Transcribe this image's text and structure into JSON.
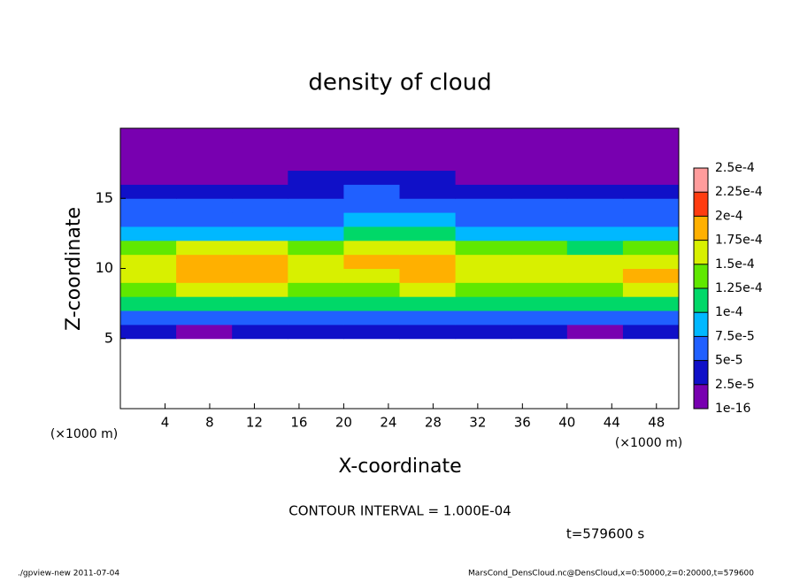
{
  "chart_data": {
    "type": "heatmap",
    "title": "density of cloud",
    "x_label": "X-coordinate",
    "y_label": "Z-coordinate",
    "x_unit": "(×1000 m)",
    "y_unit": "(×1000 m)",
    "annotation": "CONTOUR INTERVAL = 1.000E-04",
    "time_label": "t=579600 s",
    "footer_left": "./gpview-new  2011-07-04",
    "footer_right": "MarsCond_DensCloud.nc@DensCloud,x=0:50000,z=0:20000,t=579600",
    "xlim": [
      0,
      50
    ],
    "ylim": [
      0,
      20
    ],
    "xticks": [
      4,
      8,
      12,
      16,
      20,
      24,
      28,
      32,
      36,
      40,
      44,
      48
    ],
    "yticks": [
      5,
      10,
      15
    ],
    "x": [
      2.5,
      7.5,
      12.5,
      17.5,
      22.5,
      27.5,
      32.5,
      37.5,
      42.5,
      47.5
    ],
    "y": [
      0.5,
      1.5,
      2.5,
      3.5,
      4.5,
      5.5,
      6.5,
      7.5,
      8.5,
      9.5,
      10.5,
      11.5,
      12.5,
      13.5,
      14.5,
      15.5,
      16.5,
      17.5,
      18.5,
      19.5
    ],
    "values": [
      [
        null,
        null,
        null,
        null,
        null,
        null,
        null,
        null,
        null,
        null
      ],
      [
        null,
        null,
        null,
        null,
        null,
        null,
        null,
        null,
        null,
        null
      ],
      [
        null,
        null,
        null,
        null,
        null,
        null,
        null,
        null,
        null,
        null
      ],
      [
        null,
        null,
        null,
        null,
        null,
        null,
        null,
        null,
        null,
        null
      ],
      [
        null,
        null,
        null,
        null,
        null,
        null,
        null,
        null,
        null,
        null
      ],
      [
        3e-05,
        2e-05,
        3e-05,
        3e-05,
        3e-05,
        3e-05,
        3e-05,
        3e-05,
        2e-05,
        3e-05
      ],
      [
        7e-05,
        6e-05,
        7e-05,
        7e-05,
        7e-05,
        7e-05,
        7e-05,
        7e-05,
        6e-05,
        7e-05
      ],
      [
        0.00011,
        0.0001,
        0.00011,
        0.0001,
        0.0001,
        0.00011,
        0.00011,
        0.0001,
        0.0001,
        0.00011
      ],
      [
        0.00014,
        0.00015,
        0.00015,
        0.00013,
        0.00014,
        0.00015,
        0.00014,
        0.00013,
        0.00014,
        0.00015
      ],
      [
        0.00016,
        0.00018,
        0.00018,
        0.00015,
        0.00017,
        0.00018,
        0.00016,
        0.00015,
        0.00016,
        0.00018
      ],
      [
        0.00015,
        0.00018,
        0.00018,
        0.00016,
        0.00018,
        0.00019,
        0.00016,
        0.00015,
        0.00015,
        0.00016
      ],
      [
        0.00013,
        0.00015,
        0.00015,
        0.00014,
        0.00015,
        0.00016,
        0.00014,
        0.00013,
        0.00012,
        0.00013
      ],
      [
        8e-05,
        9e-05,
        9e-05,
        9e-05,
        0.00011,
        0.00011,
        9e-05,
        9e-05,
        8e-05,
        8e-05
      ],
      [
        6e-05,
        7e-05,
        7e-05,
        7e-05,
        8e-05,
        8e-05,
        7e-05,
        6e-05,
        6e-05,
        6e-05
      ],
      [
        5e-05,
        5e-05,
        5e-05,
        6e-05,
        7e-05,
        6e-05,
        5e-05,
        5e-05,
        5e-05,
        5e-05
      ],
      [
        3e-05,
        3e-05,
        4e-05,
        4e-05,
        5e-05,
        4e-05,
        3e-05,
        3e-05,
        3e-05,
        3e-05
      ],
      [
        2e-05,
        2e-05,
        2e-05,
        3e-05,
        3e-05,
        3e-05,
        2e-05,
        2e-05,
        2e-05,
        2e-05
      ],
      [
        1e-05,
        1e-05,
        1e-05,
        1e-05,
        1e-05,
        1e-05,
        1e-05,
        1e-05,
        1e-05,
        1e-05
      ],
      [
        5e-06,
        5e-06,
        5e-06,
        5e-06,
        5e-06,
        5e-06,
        5e-06,
        5e-06,
        5e-06,
        5e-06
      ],
      [
        1e-16,
        1e-16,
        1e-16,
        1e-16,
        1e-16,
        1e-16,
        1e-16,
        1e-16,
        1e-16,
        1e-16
      ]
    ],
    "levels": [
      {
        "value": 1e-16,
        "label": "1e-16"
      },
      {
        "value": 2.5e-05,
        "label": "2.5e-5"
      },
      {
        "value": 5e-05,
        "label": "5e-5"
      },
      {
        "value": 7.5e-05,
        "label": "7.5e-5"
      },
      {
        "value": 0.0001,
        "label": "1e-4"
      },
      {
        "value": 0.000125,
        "label": "1.25e-4"
      },
      {
        "value": 0.00015,
        "label": "1.5e-4"
      },
      {
        "value": 0.000175,
        "label": "1.75e-4"
      },
      {
        "value": 0.0002,
        "label": "2e-4"
      },
      {
        "value": 0.000225,
        "label": "2.25e-4"
      },
      {
        "value": 0.00025,
        "label": "2.5e-4"
      }
    ],
    "colors": [
      "#7800b0",
      "#1010c8",
      "#2060ff",
      "#00b8ff",
      "#00d868",
      "#60e800",
      "#d8f000",
      "#ffb000",
      "#ff3c10",
      "#ff9c9c"
    ]
  }
}
